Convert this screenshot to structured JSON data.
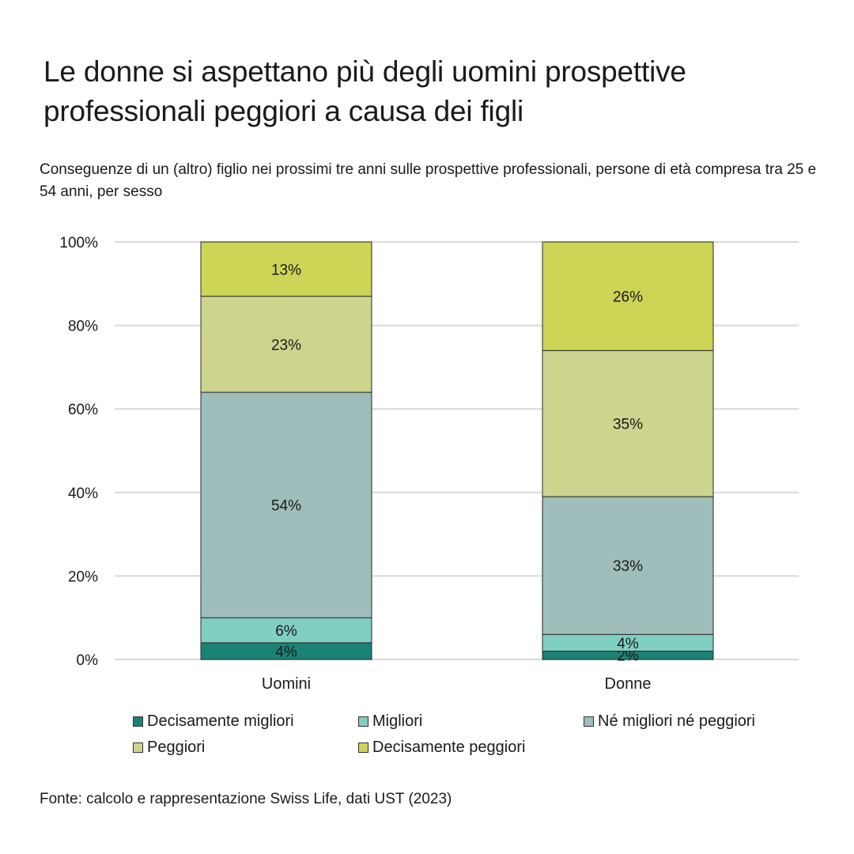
{
  "title": "Le donne si aspettano più degli uomini prospettive professionali peggiori a causa dei figli",
  "subtitle": "Conseguenze di un (altro) figlio nei prossimi tre anni sulle prospettive professionali, persone di età compresa tra 25 e 54 anni, per sesso",
  "source": "Fonte: calcolo e rappresentazione Swiss Life, dati UST (2023)",
  "chart_data": {
    "type": "bar",
    "stacked": true,
    "categories": [
      "Uomini",
      "Donne"
    ],
    "ylim": [
      0,
      100
    ],
    "yticks": [
      0,
      20,
      40,
      60,
      80,
      100
    ],
    "ytick_labels": [
      "0%",
      "20%",
      "40%",
      "60%",
      "80%",
      "100%"
    ],
    "grid": true,
    "legend_position": "bottom",
    "series": [
      {
        "name": "Decisamente migliori",
        "color": "#1b8276",
        "values": [
          4,
          2
        ],
        "labels": [
          "4%",
          "2%"
        ]
      },
      {
        "name": "Migliori",
        "color": "#80cfc2",
        "values": [
          6,
          4
        ],
        "labels": [
          "6%",
          "4%"
        ]
      },
      {
        "name": "Né migliori né peggiori",
        "color": "#9fbdbb",
        "values": [
          54,
          33
        ],
        "labels": [
          "54%",
          "33%"
        ]
      },
      {
        "name": "Peggiori",
        "color": "#cdd48e",
        "values": [
          23,
          35
        ],
        "labels": [
          "23%",
          "35%"
        ]
      },
      {
        "name": "Decisamente peggiori",
        "color": "#cdd456",
        "values": [
          13,
          26
        ],
        "labels": [
          "13%",
          "26%"
        ]
      }
    ]
  }
}
